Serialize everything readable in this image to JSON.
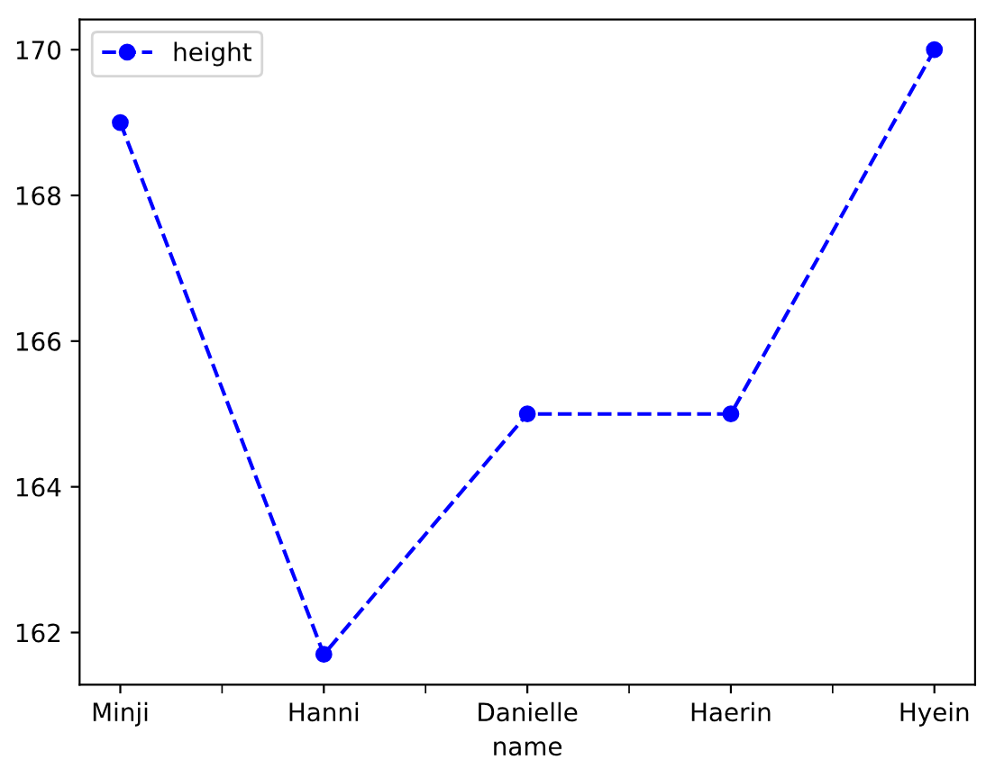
{
  "chart_data": {
    "type": "line",
    "xlabel": "name",
    "categories": [
      "Minji",
      "Hanni",
      "Danielle",
      "Haerin",
      "Hyein"
    ],
    "series": [
      {
        "name": "height",
        "color": "#0000ff",
        "values": [
          169,
          161.7,
          165,
          165,
          170
        ]
      }
    ],
    "ylim": [
      161.285,
      170.415
    ],
    "yticks": [
      162,
      164,
      166,
      168,
      170
    ],
    "marker": "circle",
    "line_style": "dashed",
    "legend": "top left",
    "grid": false
  }
}
